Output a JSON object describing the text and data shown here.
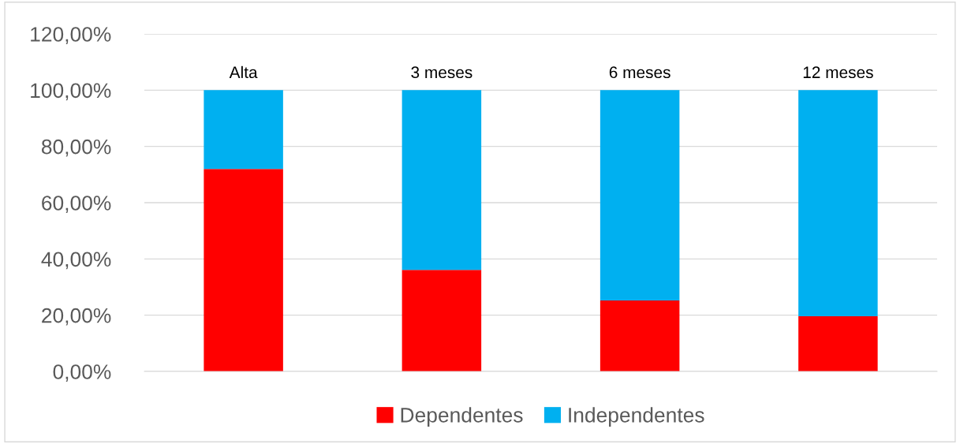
{
  "chart_data": {
    "type": "bar",
    "stacked": true,
    "categories": [
      "Alta",
      "3 meses",
      "6 meses",
      "12 meses"
    ],
    "series": [
      {
        "name": "Dependentes",
        "color": "#ff0000",
        "values": [
          72.0,
          36.1,
          25.2,
          19.6
        ]
      },
      {
        "name": "Independentes",
        "color": "#00b0f0",
        "values": [
          28.0,
          63.9,
          74.8,
          80.4
        ]
      }
    ],
    "ylim": [
      0,
      120
    ],
    "yticks": [
      {
        "value": 0,
        "label": "0,00%"
      },
      {
        "value": 20,
        "label": "20,00%"
      },
      {
        "value": 40,
        "label": "40,00%"
      },
      {
        "value": 60,
        "label": "60,00%"
      },
      {
        "value": 80,
        "label": "80,00%"
      },
      {
        "value": 100,
        "label": "100,00%"
      },
      {
        "value": 120,
        "label": "120,00%"
      }
    ],
    "grid": "y",
    "legend": "bottom"
  }
}
